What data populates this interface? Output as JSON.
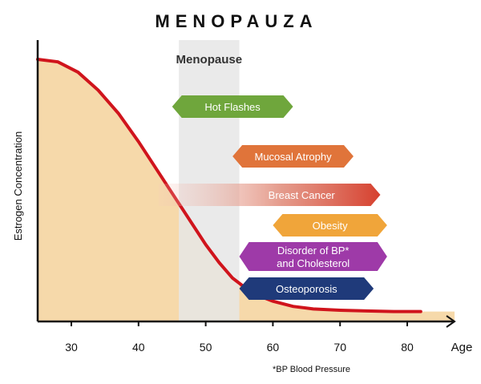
{
  "chart_data": {
    "type": "area",
    "title": "MENOPAUZA",
    "ylabel": "Estrogen Concentration",
    "xlabel": "Age",
    "xlim": [
      25,
      86
    ],
    "x_ticks": [
      30,
      40,
      50,
      60,
      70,
      80
    ],
    "ylim": [
      0,
      1
    ],
    "grid": false,
    "curve": {
      "x": [
        25,
        28,
        31,
        34,
        37,
        40,
        43,
        46,
        48,
        50,
        52,
        54,
        56,
        58,
        60,
        63,
        66,
        70,
        74,
        78,
        82
      ],
      "y": [
        1.0,
        0.99,
        0.95,
        0.88,
        0.79,
        0.68,
        0.56,
        0.44,
        0.36,
        0.28,
        0.21,
        0.15,
        0.11,
        0.08,
        0.06,
        0.04,
        0.03,
        0.025,
        0.022,
        0.02,
        0.02
      ]
    },
    "menopause_band": {
      "label": "Menopause",
      "from": 46,
      "to": 55
    },
    "arrows": [
      {
        "label": "Hot Flashes",
        "from": 45,
        "to": 63,
        "color": "#6fa63c"
      },
      {
        "label": "Mucosal Atrophy",
        "from": 54,
        "to": 72,
        "color": "#e0743a"
      },
      {
        "label": "Breast Cancer",
        "from": 43,
        "to": 76,
        "color": "#d84c3c",
        "fade": true
      },
      {
        "label": "Obesity",
        "from": 60,
        "to": 77,
        "color": "#f0a53a"
      },
      {
        "label": [
          "Disorder of BP*",
          "and Cholesterol"
        ],
        "from": 55,
        "to": 77,
        "color": "#9e3aa8"
      },
      {
        "label": "Osteoporosis",
        "from": 55,
        "to": 75,
        "color": "#1f3a7a"
      }
    ],
    "footnote": "*BP  Blood Pressure",
    "colors": {
      "curve": "#d0141c",
      "fill": "#f6d9aa",
      "band": "#e6e6e6",
      "axis": "#111111"
    }
  }
}
